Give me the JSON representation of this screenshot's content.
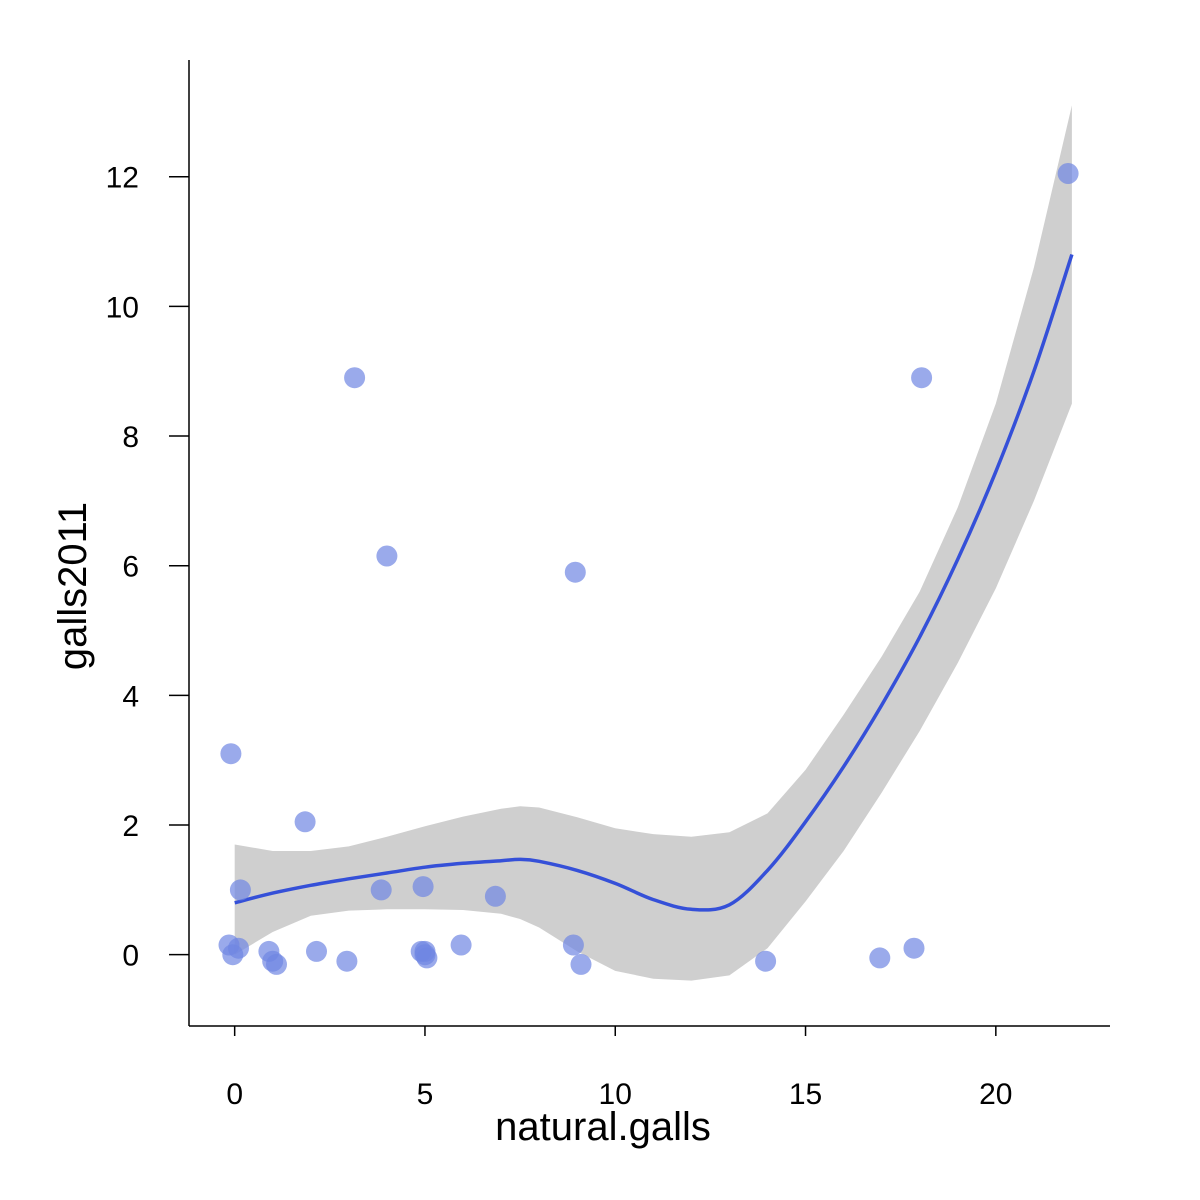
{
  "chart_data": {
    "type": "scatter",
    "xlabel": "natural.galls",
    "ylabel": "galls2011",
    "xlim": [
      -1.2,
      23.0
    ],
    "ylim": [
      -1.1,
      13.8
    ],
    "x_ticks": [
      0,
      5,
      10,
      15,
      20
    ],
    "y_ticks": [
      0,
      2,
      4,
      6,
      8,
      10,
      12
    ],
    "x_tick_labels": [
      "0",
      "5",
      "10",
      "15",
      "20"
    ],
    "y_tick_labels": [
      "0",
      "2",
      "4",
      "6",
      "8",
      "10",
      "12"
    ],
    "grid": false,
    "legend": "none",
    "colors": {
      "points": "#6f86e3",
      "smooth_line": "#3550d8",
      "ribbon": "#cfcfcf",
      "axis": "#000000"
    },
    "points": [
      {
        "x": -0.1,
        "y": 3.1
      },
      {
        "x": -0.15,
        "y": 0.15
      },
      {
        "x": -0.05,
        "y": 0.0
      },
      {
        "x": 0.1,
        "y": 0.1
      },
      {
        "x": 0.15,
        "y": 1.0
      },
      {
        "x": 0.9,
        "y": 0.05
      },
      {
        "x": 1.0,
        "y": -0.1
      },
      {
        "x": 1.1,
        "y": -0.15
      },
      {
        "x": 1.85,
        "y": 2.05
      },
      {
        "x": 2.15,
        "y": 0.05
      },
      {
        "x": 2.95,
        "y": -0.1
      },
      {
        "x": 3.15,
        "y": 8.9
      },
      {
        "x": 3.85,
        "y": 1.0
      },
      {
        "x": 4.0,
        "y": 6.15
      },
      {
        "x": 4.9,
        "y": 0.05
      },
      {
        "x": 4.95,
        "y": 1.05
      },
      {
        "x": 5.0,
        "y": 0.05
      },
      {
        "x": 5.0,
        "y": 0.0
      },
      {
        "x": 5.05,
        "y": -0.05
      },
      {
        "x": 5.95,
        "y": 0.15
      },
      {
        "x": 6.85,
        "y": 0.9
      },
      {
        "x": 8.9,
        "y": 0.15
      },
      {
        "x": 8.95,
        "y": 5.9
      },
      {
        "x": 9.1,
        "y": -0.15
      },
      {
        "x": 13.95,
        "y": -0.1
      },
      {
        "x": 16.95,
        "y": -0.05
      },
      {
        "x": 17.85,
        "y": 0.1
      },
      {
        "x": 18.05,
        "y": 8.9
      },
      {
        "x": 21.9,
        "y": 12.05
      }
    ],
    "smooth": {
      "x": [
        0,
        1,
        2,
        3,
        4,
        5,
        6,
        7,
        7.5,
        8,
        9,
        10,
        11,
        12,
        13,
        14,
        15,
        16,
        17,
        18,
        19,
        20,
        21,
        22
      ],
      "y": [
        0.8,
        0.95,
        1.07,
        1.17,
        1.26,
        1.35,
        1.41,
        1.45,
        1.47,
        1.44,
        1.3,
        1.1,
        0.85,
        0.7,
        0.77,
        1.3,
        2.05,
        2.9,
        3.85,
        4.9,
        6.1,
        7.45,
        9.0,
        10.8
      ],
      "lower": [
        0.0,
        0.35,
        0.6,
        0.68,
        0.7,
        0.7,
        0.69,
        0.63,
        0.55,
        0.42,
        0.05,
        -0.25,
        -0.37,
        -0.4,
        -0.32,
        0.1,
        0.82,
        1.6,
        2.5,
        3.45,
        4.5,
        5.65,
        7.0,
        8.5
      ],
      "upper": [
        1.7,
        1.6,
        1.6,
        1.67,
        1.82,
        1.98,
        2.13,
        2.25,
        2.29,
        2.27,
        2.12,
        1.95,
        1.86,
        1.82,
        1.89,
        2.18,
        2.85,
        3.7,
        4.6,
        5.6,
        6.9,
        8.5,
        10.6,
        13.1
      ]
    }
  }
}
